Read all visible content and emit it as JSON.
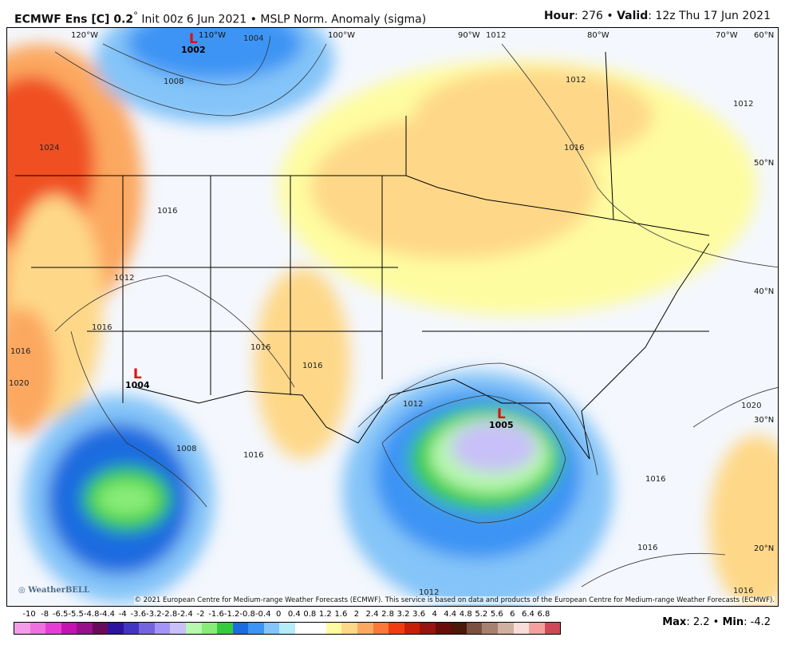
{
  "header": {
    "model": "ECMWF Ens [C] 0.2",
    "degree": "°",
    "init": "Init 00z 6 Jun 2021",
    "sep": "•",
    "product": "MSLP Norm. Anomaly (sigma)",
    "hour_label": "Hour",
    "hour": ": 276",
    "valid_label": "Valid",
    "valid": ": 12z Thu 17 Jun 2021"
  },
  "map": {
    "lon_labels": [
      "120°W",
      "110°W",
      "100°W",
      "90°W",
      "80°W",
      "70°W",
      "60°N"
    ],
    "lat_labels": [
      "50°N",
      "40°N",
      "30°N",
      "20°N"
    ],
    "contours": [
      "1004",
      "1008",
      "1012",
      "1016",
      "1020",
      "1024",
      "1012",
      "1016",
      "1016",
      "1016",
      "1016",
      "1012",
      "1016",
      "1012",
      "1020",
      "1016",
      "1016",
      "1012",
      "1016",
      "1008",
      "1016",
      "1012"
    ],
    "lows": [
      {
        "symbol": "L",
        "value": "1002"
      },
      {
        "symbol": "L",
        "value": "1004"
      },
      {
        "symbol": "L",
        "value": "1005"
      }
    ],
    "copyright": "© 2021 European Centre for Medium-range Weather Forecasts (ECMWF). This service is based on data and products of the European Centre for Medium-range Weather Forecasts (ECMWF).",
    "watermark": "WeatherBELL"
  },
  "colorbar": {
    "labels": [
      "-10",
      "-8",
      "-6.5",
      "-5.5",
      "-4.8",
      "-4.4",
      "-4",
      "-3.6",
      "-3.2",
      "-2.8",
      "-2.4",
      "-2",
      "-1.6",
      "-1.2",
      "-0.8",
      "-0.4",
      "0",
      "0.4",
      "0.8",
      "1.2",
      "1.6",
      "2",
      "2.4",
      "2.8",
      "3.2",
      "3.6",
      "4",
      "4.4",
      "4.8",
      "5.2",
      "5.6",
      "6",
      "6.4",
      "6.8"
    ],
    "colors": [
      "#f59ce8",
      "#f070e0",
      "#e63ed4",
      "#c414b0",
      "#98108a",
      "#6a0a5c",
      "#2c14a0",
      "#4434c4",
      "#7464e0",
      "#a494f8",
      "#c8c0f8",
      "#b8f8b0",
      "#88ec78",
      "#34cc3c",
      "#1c6ce0",
      "#3c94f4",
      "#84c4f8",
      "#b4ecf8",
      "#ffffff",
      "#ffffff",
      "#fefca0",
      "#fed888",
      "#fca860",
      "#fc7838",
      "#f03c10",
      "#c82008",
      "#981410",
      "#6c0c08",
      "#4c1808",
      "#7c5040",
      "#a88070",
      "#d0b0a0",
      "#f8dcd8",
      "#f4a0a0",
      "#d04858"
    ]
  },
  "stats": {
    "max_label": "Max",
    "max": ": 2.2",
    "sep": " • ",
    "min_label": "Min",
    "min": ": -4.2"
  }
}
